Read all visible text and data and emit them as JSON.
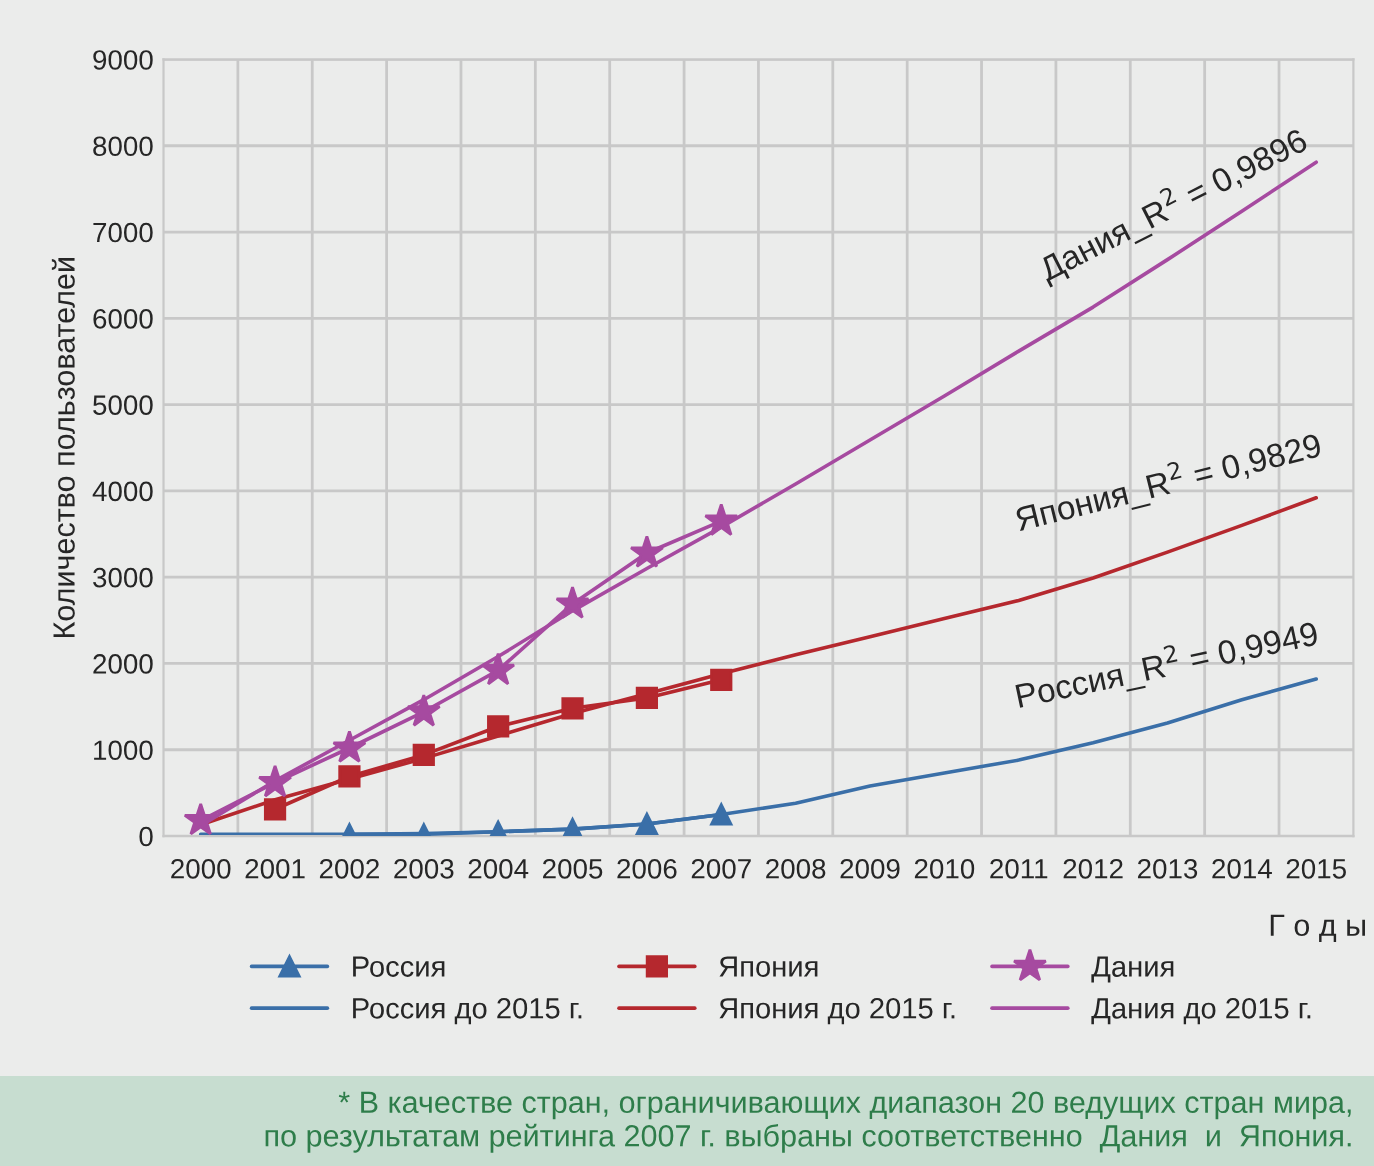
{
  "chart_data": {
    "type": "line",
    "ylabel": "Количество пользователей",
    "xlabel": "Г о д ы",
    "categories": [
      "2000",
      "2001",
      "2002",
      "2003",
      "2004",
      "2005",
      "2006",
      "2007",
      "2008",
      "2009",
      "2010",
      "2011",
      "2012",
      "2013",
      "2014",
      "2015"
    ],
    "ylim": [
      0,
      9000
    ],
    "yticks": [
      0,
      1000,
      2000,
      3000,
      4000,
      5000,
      6000,
      7000,
      8000,
      9000
    ],
    "grid": true,
    "legend": "bottom",
    "series": [
      {
        "name": "Россия",
        "color": "#3a6fa8",
        "marker": "triangle",
        "values": [
          null,
          null,
          20,
          20,
          50,
          80,
          140,
          250,
          null,
          null,
          null,
          null,
          null,
          null,
          null,
          null
        ]
      },
      {
        "name": "Япония",
        "color": "#b5282e",
        "marker": "square",
        "values": [
          null,
          310,
          690,
          940,
          1270,
          1480,
          1600,
          1810,
          null,
          null,
          null,
          null,
          null,
          null,
          null,
          null
        ]
      },
      {
        "name": "Дания",
        "color": "#a64aa0",
        "marker": "star",
        "values": [
          180,
          620,
          1020,
          1440,
          1920,
          2690,
          3280,
          3650,
          null,
          null,
          null,
          null,
          null,
          null,
          null,
          null
        ]
      },
      {
        "name": "Россия до 2015 г.",
        "color": "#3a6fa8",
        "marker": "none",
        "values": [
          20,
          20,
          20,
          30,
          50,
          80,
          140,
          250,
          380,
          580,
          730,
          880,
          1080,
          1310,
          1580,
          1820
        ]
      },
      {
        "name": "Япония до 2015 г.",
        "color": "#b5282e",
        "marker": "none",
        "values": [
          130,
          420,
          660,
          900,
          1160,
          1420,
          1650,
          1880,
          2100,
          2310,
          2520,
          2730,
          2990,
          3290,
          3600,
          3920
        ]
      },
      {
        "name": "Дания до 2015 г.",
        "color": "#a64aa0",
        "marker": "none",
        "values": [
          120,
          640,
          1110,
          1580,
          2080,
          2610,
          3100,
          3580,
          4080,
          4590,
          5100,
          5620,
          6130,
          6680,
          7240,
          7810
        ]
      }
    ],
    "annotations": [
      "Дания_R$^{2}$ = 0,9896",
      "Япония_R$^{2}$ = 0,9829",
      "Россия_R$^{2}$ = 0,9949",
      "* В качестве стран, ограничивающих диапазон 20 ведущих стран мира,\nпо результатам рейтинга 2007 г. выбраны соответственно  Дания  и  Япония."
    ]
  }
}
